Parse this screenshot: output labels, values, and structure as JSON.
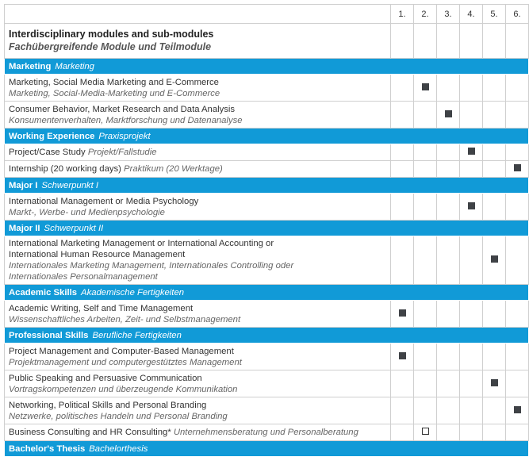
{
  "header": {
    "title": "Interdisciplinary modules and sub-modules",
    "subtitle": "Fachübergreifende Module und Teilmodule",
    "semesters": [
      "1.",
      "2.",
      "3.",
      "4.",
      "5.",
      "6."
    ]
  },
  "sections": [
    {
      "title": "Marketing",
      "subtitle": "Marketing",
      "items": [
        {
          "title": [
            "Marketing, Social Media Marketing and E-Commerce"
          ],
          "subtitle": [
            "Marketing, Social-Media-Marketing und E-Commerce"
          ],
          "semester": 2,
          "mark": "filled"
        },
        {
          "title": [
            "Consumer Behavior, Market Research and Data Analysis"
          ],
          "subtitle": [
            "Konsumentenverhalten, Marktforschung und Datenanalyse"
          ],
          "semester": 3,
          "mark": "filled"
        }
      ]
    },
    {
      "title": "Working Experience",
      "subtitle": "Praxisprojekt",
      "items": [
        {
          "title": [
            "Project/Case Study"
          ],
          "subtitle": [
            "Projekt/Fallstudie"
          ],
          "inline": true,
          "semester": 4,
          "mark": "filled"
        },
        {
          "title": [
            "Internship (20 working days)"
          ],
          "subtitle": [
            "Praktikum (20 Werktage)"
          ],
          "inline": true,
          "semester": 6,
          "mark": "filled"
        }
      ]
    },
    {
      "title": "Major I",
      "subtitle": "Schwerpunkt I",
      "items": [
        {
          "title": [
            "International Management or Media Psychology"
          ],
          "subtitle": [
            "Markt-, Werbe- und Medienpsychologie"
          ],
          "semester": 4,
          "mark": "filled"
        }
      ]
    },
    {
      "title": "Major II",
      "subtitle": "Schwerpunkt II",
      "items": [
        {
          "title": [
            "International Marketing Management or International Accounting or",
            "International Human Resource Management"
          ],
          "subtitle": [
            "Internationales Marketing Management, Internationales Controlling oder",
            "Internationales Personalmanagement"
          ],
          "semester": 5,
          "mark": "filled"
        }
      ]
    },
    {
      "title": "Academic Skills",
      "subtitle": "Akademische Fertigkeiten",
      "items": [
        {
          "title": [
            "Academic Writing, Self and Time Management"
          ],
          "subtitle": [
            "Wissenschaftliches Arbeiten, Zeit- und Selbstmanagement"
          ],
          "semester": 1,
          "mark": "filled"
        }
      ]
    },
    {
      "title": "Professional Skills",
      "subtitle": "Berufliche Fertigkeiten",
      "items": [
        {
          "title": [
            "Project Management and Computer-Based Management"
          ],
          "subtitle": [
            "Projektmanagement und computergestütztes Management"
          ],
          "semester": 1,
          "mark": "filled"
        },
        {
          "title": [
            "Public Speaking and Persuasive Communication"
          ],
          "subtitle": [
            "Vortragskompetenzen und überzeugende Kommunikation"
          ],
          "semester": 5,
          "mark": "filled"
        },
        {
          "title": [
            "Networking, Political Skills and Personal Branding"
          ],
          "subtitle": [
            "Netzwerke, politisches Handeln und Personal Branding"
          ],
          "semester": 6,
          "mark": "filled"
        },
        {
          "title": [
            "Business Consulting and HR Consulting*"
          ],
          "subtitle": [
            "Unternehmensberatung und Personalberatung"
          ],
          "inline": true,
          "semester": 2,
          "mark": "open"
        }
      ]
    },
    {
      "title": "Bachelor's Thesis",
      "subtitle": "Bachelorthesis",
      "items": []
    }
  ]
}
